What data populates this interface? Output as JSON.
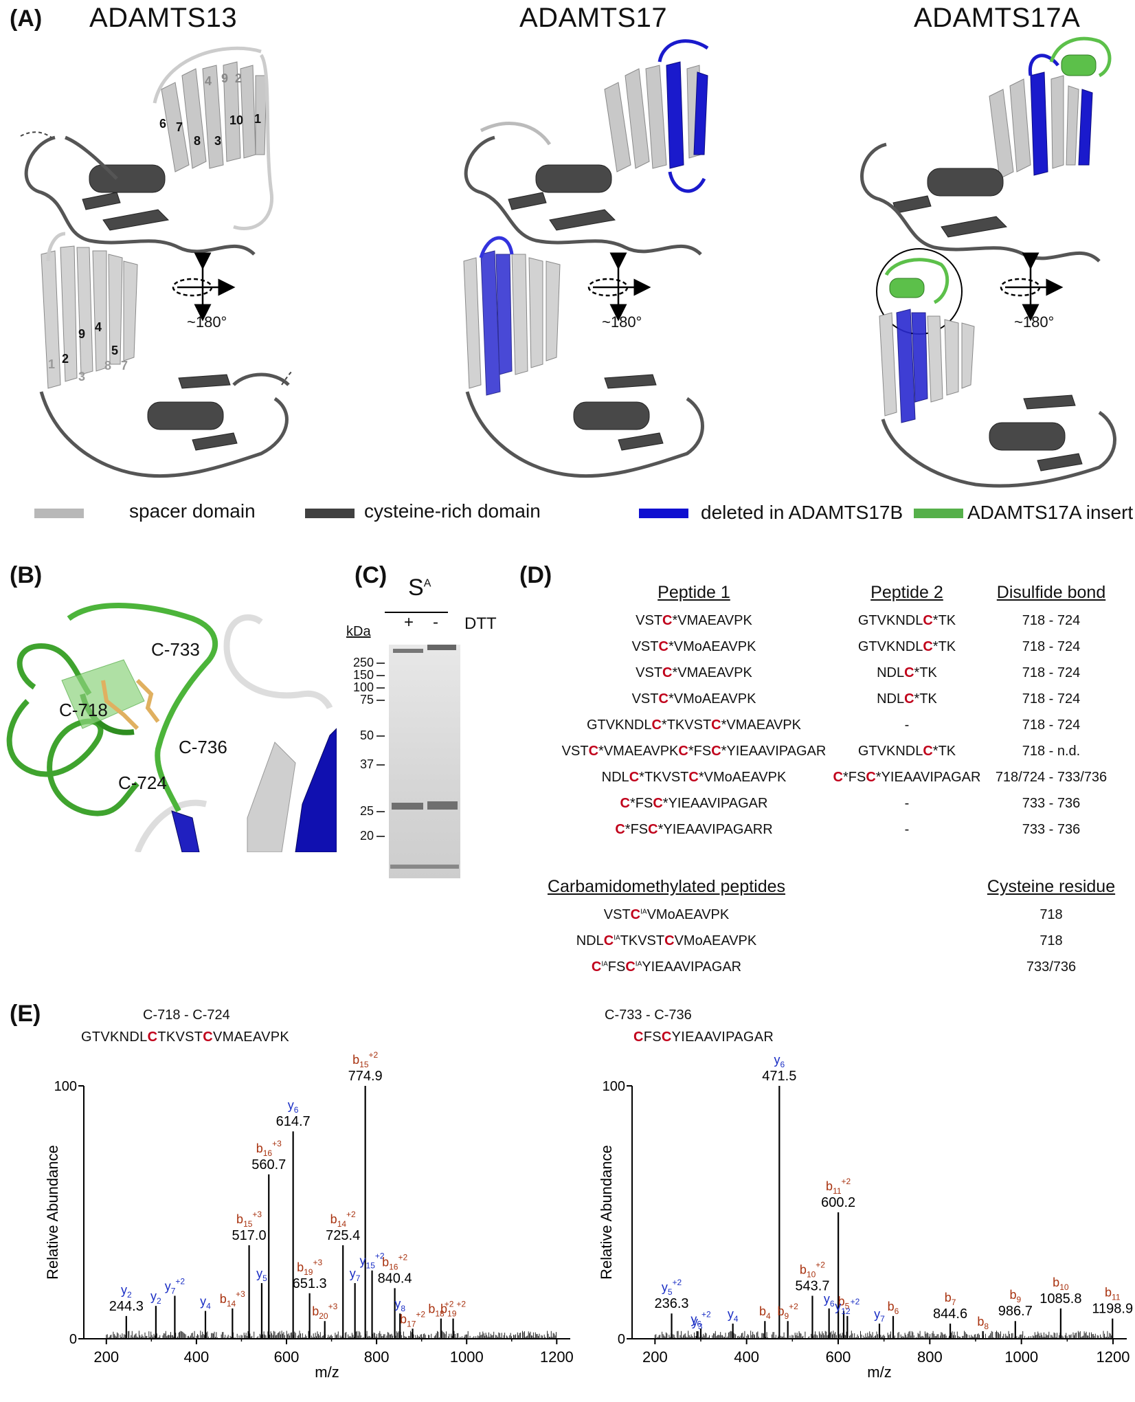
{
  "panel_a": {
    "label": "(A)",
    "titles": [
      "ADAMTS13",
      "ADAMTS17",
      "ADAMTS17A"
    ],
    "rotation_label": "~180°",
    "strand_numbers_top": [
      "6",
      "7",
      "8",
      "3",
      "10",
      "1",
      "4",
      "9",
      "2"
    ],
    "strand_numbers_bottom": [
      "1",
      "2",
      "9",
      "4",
      "5",
      "3",
      "8",
      "7"
    ]
  },
  "legend": [
    {
      "label": "spacer domain",
      "color": "#b8b8b8"
    },
    {
      "label": "cysteine-rich domain",
      "color": "#404040"
    },
    {
      "label": "deleted in ADAMTS17B",
      "color": "#1010d0"
    },
    {
      "label": "ADAMTS17A insert",
      "color": "#55b04a"
    }
  ],
  "panel_b": {
    "label": "(B)",
    "cysteines": [
      "C-733",
      "C-718",
      "C-736",
      "C-724"
    ]
  },
  "panel_c": {
    "label": "(C)",
    "sample": "S",
    "sample_sup": "A",
    "lanes": [
      "+",
      "-"
    ],
    "reagent": "DTT",
    "unit": "kDa",
    "markers": [
      "250",
      "150",
      "100",
      "75",
      "50",
      "37",
      "25",
      "20"
    ]
  },
  "panel_d": {
    "label": "(D)",
    "headers": [
      "Peptide 1",
      "Peptide 2",
      "Disulfide bond"
    ],
    "rows": [
      {
        "p1": "VSTC*VMAEAVPK",
        "p2": "GTVKNDLC*TK",
        "bond": "718 - 724"
      },
      {
        "p1": "VSTC*VMoAEAVPK",
        "p2": "GTVKNDLC*TK",
        "bond": "718 - 724"
      },
      {
        "p1": "VSTC*VMAEAVPK",
        "p2": "NDLC*TK",
        "bond": "718 - 724"
      },
      {
        "p1": "VSTC*VMoAEAVPK",
        "p2": "NDLC*TK",
        "bond": "718 - 724"
      },
      {
        "p1": "GTVKNDLC*TKVSTC*VMAEAVPK",
        "p2": "-",
        "bond": "718 - 724"
      },
      {
        "p1": "VSTC*VMAEAVPKC*FSC*YIEAAVIPAGAR",
        "p2": "GTVKNDLC*TK",
        "bond": "718 - n.d."
      },
      {
        "p1": "NDLC*TKVSTC*VMoAEAVPK",
        "p2": "C*FSC*YIEAAVIPAGAR",
        "bond": "718/724 - 733/736"
      },
      {
        "p1": "C*FSC*YIEAAVIPAGAR",
        "p2": "-",
        "bond": "733 - 736"
      },
      {
        "p1": "C*FSC*YIEAAVIPAGARR",
        "p2": "-",
        "bond": "733 - 736"
      }
    ],
    "carb_headers": [
      "Carbamidomethylated peptides",
      "Cysteine residue"
    ],
    "carb_rows": [
      {
        "pep": "VSTC^IAVMoAEAVPK",
        "res": "718"
      },
      {
        "pep": "NDLC^IATKVSTCVMoAEAVPK",
        "res": "718"
      },
      {
        "pep": "C^IAFSC^IAYIEAAVIPAGAR",
        "res": "733/736"
      }
    ]
  },
  "panel_e": {
    "label": "(E)",
    "left_bond": "C-718 - C-724",
    "left_peptide": "GTVKNDLCTKVSTCVMAEAVPK",
    "right_bond": "C-733 - C-736",
    "right_peptide": "CFSCYIEAAVIPAGAR"
  },
  "chart_data": [
    {
      "type": "bar",
      "title": "C-718 - C-724 GTVKNDLCTKVSTCVMAEAVPK",
      "xlabel": "m/z",
      "ylabel": "Relative Abundance",
      "xlim": [
        150,
        1230
      ],
      "ylim": [
        0,
        100
      ],
      "xticks": [
        200,
        400,
        600,
        800,
        1000,
        1200
      ],
      "yticks": [
        0,
        100
      ],
      "peaks": [
        {
          "mz": 244.3,
          "rel": 9,
          "ion": "y",
          "sub": "2",
          "sup": "",
          "value": "244.3"
        },
        {
          "mz": 310,
          "rel": 13,
          "ion": "y",
          "sub": "2",
          "sup": "",
          "value": ""
        },
        {
          "mz": 352,
          "rel": 17,
          "ion": "y",
          "sub": "7",
          "sup": "+2",
          "value": ""
        },
        {
          "mz": 420,
          "rel": 11,
          "ion": "y",
          "sub": "4",
          "sup": "",
          "value": ""
        },
        {
          "mz": 480,
          "rel": 12,
          "ion": "b",
          "sub": "14",
          "sup": "+3",
          "value": ""
        },
        {
          "mz": 517.0,
          "rel": 37,
          "ion": "b",
          "sub": "15",
          "sup": "+3",
          "value": "517.0"
        },
        {
          "mz": 545,
          "rel": 22,
          "ion": "y",
          "sub": "5",
          "sup": "",
          "value": ""
        },
        {
          "mz": 560.7,
          "rel": 65,
          "ion": "b",
          "sub": "16",
          "sup": "+3",
          "value": "560.7"
        },
        {
          "mz": 614.7,
          "rel": 82,
          "ion": "y",
          "sub": "6",
          "sup": "",
          "value": "614.7"
        },
        {
          "mz": 651.3,
          "rel": 18,
          "ion": "b",
          "sub": "19",
          "sup": "+3",
          "value": "651.3"
        },
        {
          "mz": 685,
          "rel": 7,
          "ion": "b",
          "sub": "20",
          "sup": "+3",
          "value": ""
        },
        {
          "mz": 725.4,
          "rel": 37,
          "ion": "b",
          "sub": "14",
          "sup": "+2",
          "value": "725.4"
        },
        {
          "mz": 752,
          "rel": 22,
          "ion": "y",
          "sub": "7",
          "sup": "",
          "value": ""
        },
        {
          "mz": 774.9,
          "rel": 100,
          "ion": "b",
          "sub": "15",
          "sup": "+2",
          "value": "774.9"
        },
        {
          "mz": 790,
          "rel": 27,
          "ion": "y",
          "sub": "15",
          "sup": "+2",
          "value": ""
        },
        {
          "mz": 840.4,
          "rel": 20,
          "ion": "b",
          "sub": "16",
          "sup": "+2",
          "value": "840.4"
        },
        {
          "mz": 852,
          "rel": 10,
          "ion": "y",
          "sub": "8",
          "sup": "",
          "value": ""
        },
        {
          "mz": 880,
          "rel": 4,
          "ion": "b",
          "sub": "17",
          "sup": "+2",
          "value": ""
        },
        {
          "mz": 943,
          "rel": 8,
          "ion": "b",
          "sub": "18",
          "sup": "+2",
          "value": ""
        },
        {
          "mz": 970,
          "rel": 8,
          "ion": "b",
          "sub": "19",
          "sup": "+2",
          "value": ""
        }
      ]
    },
    {
      "type": "bar",
      "title": "C-733 - C-736 CFSCYIEAAVIPAGAR",
      "xlabel": "m/z",
      "ylabel": "Relative Abundance",
      "xlim": [
        150,
        1230
      ],
      "ylim": [
        0,
        100
      ],
      "xticks": [
        200,
        400,
        600,
        800,
        1000,
        1200
      ],
      "yticks": [
        0,
        100
      ],
      "peaks": [
        {
          "mz": 236.3,
          "rel": 10,
          "ion": "y",
          "sub": "5",
          "sup": "+2",
          "value": "236.3"
        },
        {
          "mz": 292,
          "rel": 3,
          "ion": "y",
          "sub": "3",
          "sup": "",
          "value": ""
        },
        {
          "mz": 300,
          "rel": 4,
          "ion": "y",
          "sub": "6",
          "sup": "+2",
          "value": ""
        },
        {
          "mz": 370,
          "rel": 6,
          "ion": "y",
          "sub": "4",
          "sup": "",
          "value": ""
        },
        {
          "mz": 440,
          "rel": 7,
          "ion": "b",
          "sub": "4",
          "sup": "",
          "value": ""
        },
        {
          "mz": 471.5,
          "rel": 100,
          "ion": "y",
          "sub": "6",
          "sup": "",
          "value": "471.5"
        },
        {
          "mz": 490,
          "rel": 7,
          "ion": "b",
          "sub": "9",
          "sup": "+2",
          "value": ""
        },
        {
          "mz": 543.7,
          "rel": 17,
          "ion": "b",
          "sub": "10",
          "sup": "+2",
          "value": "543.7"
        },
        {
          "mz": 580,
          "rel": 12,
          "ion": "y",
          "sub": "6",
          "sup": "",
          "value": ""
        },
        {
          "mz": 600.2,
          "rel": 50,
          "ion": "b",
          "sub": "11",
          "sup": "+2",
          "value": "600.2"
        },
        {
          "mz": 612,
          "rel": 11,
          "ion": "b",
          "sub": "5",
          "sup": "",
          "value": ""
        },
        {
          "mz": 620,
          "rel": 9,
          "ion": "y",
          "sub": "12",
          "sup": "+2",
          "value": ""
        },
        {
          "mz": 690,
          "rel": 6,
          "ion": "y",
          "sub": "7",
          "sup": "",
          "value": ""
        },
        {
          "mz": 720,
          "rel": 9,
          "ion": "b",
          "sub": "6",
          "sup": "",
          "value": ""
        },
        {
          "mz": 844.6,
          "rel": 6,
          "ion": "b",
          "sub": "7",
          "sup": "",
          "value": "844.6"
        },
        {
          "mz": 916,
          "rel": 3,
          "ion": "b",
          "sub": "8",
          "sup": "",
          "value": ""
        },
        {
          "mz": 986.7,
          "rel": 7,
          "ion": "b",
          "sub": "9",
          "sup": "",
          "value": "986.7"
        },
        {
          "mz": 1085.8,
          "rel": 12,
          "ion": "b",
          "sub": "10",
          "sup": "",
          "value": "1085.8"
        },
        {
          "mz": 1198.9,
          "rel": 8,
          "ion": "b",
          "sub": "11",
          "sup": "",
          "value": "1198.9"
        }
      ]
    }
  ],
  "colors": {
    "b_ion": "#a8320f",
    "y_ion": "#1a2ec4",
    "cysteine": "#c0001a"
  }
}
